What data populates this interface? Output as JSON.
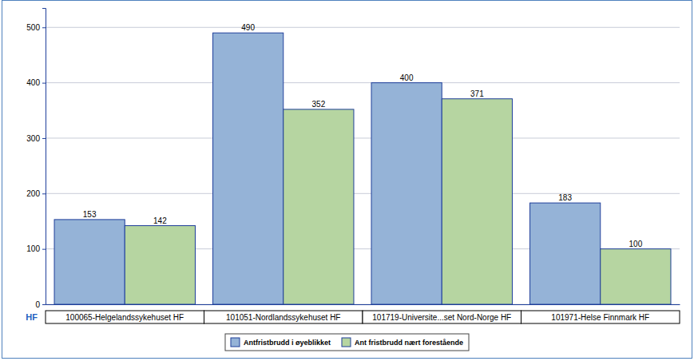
{
  "chart_data": {
    "type": "bar",
    "x_label": "HF",
    "categories": [
      "100065-Helgelandssykehuset HF",
      "101051-Nordlandssykehuset HF",
      "101719-Universite...set Nord-Norge HF",
      "101971-Helse Finnmark HF"
    ],
    "series": [
      {
        "name": "Antfristbrudd i øyeblikket",
        "color": "#95b3d7",
        "values": [
          153,
          490,
          400,
          183
        ]
      },
      {
        "name": "Ant fristbrudd nært forestående",
        "color": "#b6d5a1",
        "values": [
          142,
          352,
          371,
          100
        ]
      }
    ],
    "ylim": [
      0,
      535
    ],
    "yticks": [
      0,
      100,
      200,
      300,
      400,
      500
    ],
    "grid": true,
    "data_labels": true,
    "legend": "bottom"
  }
}
